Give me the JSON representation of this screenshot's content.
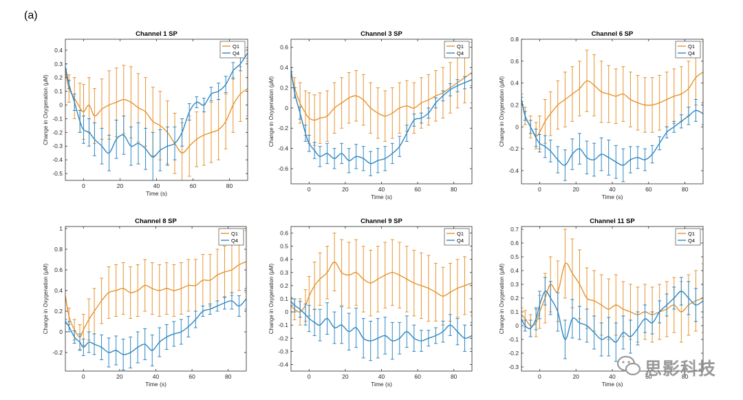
{
  "figure": {
    "panel_label": "(a)",
    "watermark_text": "思影科技"
  },
  "colors": {
    "q1": "#EDB120",
    "q1_line": "#E6922C",
    "q4": "#2E86C1",
    "axis": "#262626",
    "grid": "#ffffff"
  },
  "chart_data": [
    {
      "type": "line",
      "title": "Channel 1 SP",
      "xlabel": "Time (s)",
      "ylabel": "Change in Oxygenation (μM)",
      "xlim": [
        -10,
        90
      ],
      "ylim": [
        -0.55,
        0.48
      ],
      "xticks": [
        0,
        20,
        40,
        60,
        80
      ],
      "yticks": [
        -0.5,
        -0.4,
        -0.3,
        -0.2,
        -0.1,
        0,
        0.1,
        0.2,
        0.3,
        0.4
      ],
      "ytick_labels": [
        "-0.5",
        "-0.4",
        "-0.3",
        "-0.2",
        "-0.1",
        "0",
        "0.1",
        "0.2",
        "0.3",
        "0.4"
      ],
      "legend": "top-right",
      "x": [
        -10,
        -8,
        -5,
        -2,
        0,
        3,
        6,
        10,
        14,
        18,
        22,
        26,
        30,
        34,
        38,
        42,
        46,
        50,
        54,
        58,
        62,
        66,
        70,
        74,
        78,
        82,
        86,
        90
      ],
      "series": [
        {
          "name": "Q1",
          "values": [
            0.25,
            0.12,
            0.05,
            -0.02,
            -0.05,
            0.0,
            -0.08,
            -0.03,
            0.0,
            0.02,
            0.04,
            0.02,
            -0.02,
            -0.05,
            -0.12,
            -0.15,
            -0.2,
            -0.28,
            -0.35,
            -0.3,
            -0.25,
            -0.22,
            -0.2,
            -0.18,
            -0.12,
            0.0,
            0.08,
            0.12
          ],
          "errors": [
            0.05,
            0.1,
            0.15,
            0.18,
            0.2,
            0.2,
            0.2,
            0.22,
            0.25,
            0.25,
            0.25,
            0.26,
            0.25,
            0.25,
            0.25,
            0.25,
            0.23,
            0.22,
            0.22,
            0.22,
            0.2,
            0.22,
            0.22,
            0.22,
            0.2,
            0.2,
            0.2,
            0.2
          ]
        },
        {
          "name": "Q4",
          "values": [
            0.28,
            0.15,
            0.02,
            -0.12,
            -0.18,
            -0.2,
            -0.25,
            -0.3,
            -0.35,
            -0.25,
            -0.22,
            -0.3,
            -0.28,
            -0.32,
            -0.38,
            -0.33,
            -0.3,
            -0.28,
            -0.2,
            -0.05,
            0.02,
            0.0,
            0.08,
            0.1,
            0.15,
            0.25,
            0.3,
            0.38
          ],
          "errors": [
            0.02,
            0.03,
            0.06,
            0.08,
            0.1,
            0.1,
            0.12,
            0.13,
            0.13,
            0.14,
            0.14,
            0.14,
            0.15,
            0.15,
            0.18,
            0.15,
            0.14,
            0.12,
            0.1,
            0.06,
            0.04,
            0.05,
            0.05,
            0.06,
            0.06,
            0.06,
            0.05,
            0.04
          ]
        }
      ]
    },
    {
      "type": "line",
      "title": "Channel 3 SP",
      "xlabel": "Time (s)",
      "ylabel": "Change in Oxygenation (μM)",
      "xlim": [
        -10,
        90
      ],
      "ylim": [
        -0.75,
        0.68
      ],
      "xticks": [
        0,
        20,
        40,
        60,
        80
      ],
      "yticks": [
        -0.6,
        -0.4,
        -0.2,
        0,
        0.2,
        0.4,
        0.6
      ],
      "ytick_labels": [
        "-0.6",
        "-0.4",
        "-0.2",
        "0",
        "0.2",
        "0.4",
        "0.6"
      ],
      "legend": "top-right",
      "x": [
        -10,
        -8,
        -5,
        -2,
        0,
        3,
        6,
        10,
        14,
        18,
        22,
        26,
        30,
        34,
        38,
        42,
        46,
        50,
        54,
        58,
        62,
        66,
        70,
        74,
        78,
        82,
        86,
        90
      ],
      "series": [
        {
          "name": "Q1",
          "values": [
            0.35,
            0.2,
            0.05,
            -0.05,
            -0.1,
            -0.12,
            -0.1,
            -0.08,
            0.0,
            0.05,
            0.1,
            0.12,
            0.08,
            0.0,
            -0.05,
            -0.08,
            -0.05,
            0.0,
            0.02,
            0.0,
            0.05,
            0.08,
            0.12,
            0.15,
            0.2,
            0.25,
            0.3,
            0.35
          ],
          "errors": [
            0.05,
            0.1,
            0.2,
            0.22,
            0.25,
            0.25,
            0.25,
            0.25,
            0.25,
            0.25,
            0.25,
            0.25,
            0.25,
            0.25,
            0.25,
            0.25,
            0.25,
            0.25,
            0.25,
            0.25,
            0.25,
            0.25,
            0.25,
            0.25,
            0.25,
            0.25,
            0.25,
            0.3
          ]
        },
        {
          "name": "Q4",
          "values": [
            0.38,
            0.15,
            -0.05,
            -0.25,
            -0.35,
            -0.42,
            -0.48,
            -0.45,
            -0.5,
            -0.45,
            -0.52,
            -0.48,
            -0.5,
            -0.55,
            -0.52,
            -0.5,
            -0.45,
            -0.38,
            -0.25,
            -0.12,
            -0.1,
            -0.05,
            0.05,
            0.12,
            0.18,
            0.22,
            0.25,
            0.28
          ],
          "errors": [
            0.02,
            0.05,
            0.06,
            0.08,
            0.08,
            0.08,
            0.1,
            0.1,
            0.1,
            0.1,
            0.12,
            0.12,
            0.12,
            0.12,
            0.12,
            0.12,
            0.1,
            0.1,
            0.08,
            0.06,
            0.05,
            0.05,
            0.05,
            0.05,
            0.06,
            0.06,
            0.06,
            0.06
          ]
        }
      ]
    },
    {
      "type": "line",
      "title": "Channel 6 SP",
      "xlabel": "Time (s)",
      "ylabel": "Change in Oxygenation (μM)",
      "xlim": [
        -10,
        90
      ],
      "ylim": [
        -0.52,
        0.8
      ],
      "xticks": [
        0,
        20,
        40,
        60,
        80
      ],
      "yticks": [
        -0.4,
        -0.2,
        0,
        0.2,
        0.4,
        0.6,
        0.8
      ],
      "ytick_labels": [
        "-0.4",
        "-0.2",
        "0",
        "0.2",
        "0.4",
        "0.6",
        "0.8"
      ],
      "legend": "top-right",
      "x": [
        -10,
        -8,
        -5,
        -2,
        0,
        3,
        6,
        10,
        14,
        18,
        22,
        26,
        30,
        34,
        38,
        42,
        46,
        50,
        54,
        58,
        62,
        66,
        70,
        74,
        78,
        82,
        86,
        90
      ],
      "series": [
        {
          "name": "Q1",
          "values": [
            0.25,
            0.1,
            0.0,
            -0.08,
            -0.05,
            0.05,
            0.12,
            0.2,
            0.25,
            0.3,
            0.35,
            0.42,
            0.38,
            0.32,
            0.3,
            0.28,
            0.3,
            0.25,
            0.22,
            0.2,
            0.2,
            0.22,
            0.25,
            0.28,
            0.3,
            0.35,
            0.45,
            0.5
          ],
          "errors": [
            0.05,
            0.08,
            0.1,
            0.12,
            0.15,
            0.2,
            0.2,
            0.22,
            0.25,
            0.25,
            0.25,
            0.28,
            0.28,
            0.28,
            0.26,
            0.25,
            0.25,
            0.25,
            0.25,
            0.25,
            0.25,
            0.25,
            0.25,
            0.25,
            0.25,
            0.25,
            0.25,
            0.28
          ]
        },
        {
          "name": "Q4",
          "values": [
            0.25,
            0.1,
            0.0,
            -0.1,
            -0.15,
            -0.18,
            -0.22,
            -0.3,
            -0.35,
            -0.25,
            -0.2,
            -0.28,
            -0.3,
            -0.25,
            -0.28,
            -0.32,
            -0.35,
            -0.3,
            -0.28,
            -0.3,
            -0.25,
            -0.15,
            -0.05,
            0.0,
            0.05,
            0.1,
            0.15,
            0.12
          ],
          "errors": [
            0.02,
            0.04,
            0.06,
            0.08,
            0.08,
            0.1,
            0.1,
            0.12,
            0.14,
            0.14,
            0.14,
            0.15,
            0.15,
            0.15,
            0.16,
            0.15,
            0.15,
            0.12,
            0.1,
            0.1,
            0.08,
            0.06,
            0.05,
            0.05,
            0.06,
            0.08,
            0.1,
            0.1
          ]
        }
      ]
    },
    {
      "type": "line",
      "title": "Channel 8 SP",
      "xlabel": "Time (s)",
      "ylabel": "Change in Oxygenation (μM)",
      "xlim": [
        -10,
        90
      ],
      "ylim": [
        -0.38,
        1.02
      ],
      "xticks": [
        0,
        20,
        40,
        60,
        80
      ],
      "yticks": [
        -0.2,
        0,
        0.2,
        0.4,
        0.6,
        0.8,
        1
      ],
      "ytick_labels": [
        "-0.2",
        "0",
        "0.2",
        "0.4",
        "0.6",
        "0.8",
        "1"
      ],
      "legend": "top-right",
      "x": [
        -10,
        -8,
        -5,
        -2,
        0,
        3,
        6,
        10,
        14,
        18,
        22,
        26,
        30,
        34,
        38,
        42,
        46,
        50,
        54,
        58,
        62,
        66,
        70,
        74,
        78,
        82,
        86,
        90
      ],
      "series": [
        {
          "name": "Q1",
          "values": [
            0.35,
            0.15,
            0.02,
            -0.05,
            0.02,
            0.12,
            0.2,
            0.3,
            0.38,
            0.4,
            0.42,
            0.38,
            0.4,
            0.45,
            0.42,
            0.4,
            0.42,
            0.4,
            0.42,
            0.45,
            0.45,
            0.5,
            0.5,
            0.55,
            0.58,
            0.6,
            0.65,
            0.68
          ],
          "errors": [
            0.05,
            0.08,
            0.1,
            0.12,
            0.15,
            0.2,
            0.22,
            0.22,
            0.25,
            0.25,
            0.25,
            0.25,
            0.25,
            0.25,
            0.25,
            0.25,
            0.25,
            0.25,
            0.25,
            0.25,
            0.25,
            0.25,
            0.25,
            0.25,
            0.25,
            0.25,
            0.25,
            0.3
          ]
        },
        {
          "name": "Q4",
          "values": [
            0.1,
            0.05,
            -0.05,
            -0.1,
            -0.15,
            -0.1,
            -0.12,
            -0.15,
            -0.2,
            -0.18,
            -0.22,
            -0.2,
            -0.15,
            -0.12,
            -0.18,
            -0.1,
            -0.05,
            -0.02,
            0.0,
            0.05,
            0.12,
            0.2,
            0.22,
            0.25,
            0.28,
            0.3,
            0.25,
            0.32
          ],
          "errors": [
            0.02,
            0.05,
            0.06,
            0.08,
            0.08,
            0.1,
            0.1,
            0.12,
            0.14,
            0.14,
            0.15,
            0.15,
            0.15,
            0.15,
            0.15,
            0.14,
            0.12,
            0.12,
            0.12,
            0.1,
            0.08,
            0.05,
            0.05,
            0.05,
            0.06,
            0.08,
            0.1,
            0.1
          ]
        }
      ]
    },
    {
      "type": "line",
      "title": "Channel 9 SP",
      "xlabel": "Time (s)",
      "ylabel": "Change in Oxygenation (μM)",
      "xlim": [
        -10,
        90
      ],
      "ylim": [
        -0.45,
        0.65
      ],
      "xticks": [
        0,
        20,
        40,
        60,
        80
      ],
      "yticks": [
        -0.4,
        -0.3,
        -0.2,
        -0.1,
        0,
        0.1,
        0.2,
        0.3,
        0.4,
        0.5,
        0.6
      ],
      "ytick_labels": [
        "-0.4",
        "-0.3",
        "-0.2",
        "-0.1",
        "0",
        "0.1",
        "0.2",
        "0.3",
        "0.4",
        "0.5",
        "0.6"
      ],
      "legend": "top-right",
      "x": [
        -10,
        -8,
        -5,
        -2,
        0,
        3,
        6,
        10,
        14,
        18,
        22,
        26,
        30,
        34,
        38,
        42,
        46,
        50,
        54,
        58,
        62,
        66,
        70,
        74,
        78,
        82,
        86,
        90
      ],
      "series": [
        {
          "name": "Q1",
          "values": [
            0.05,
            0.02,
            0.0,
            0.05,
            0.12,
            0.2,
            0.25,
            0.3,
            0.38,
            0.3,
            0.28,
            0.3,
            0.25,
            0.22,
            0.25,
            0.28,
            0.3,
            0.28,
            0.25,
            0.22,
            0.2,
            0.18,
            0.15,
            0.12,
            0.15,
            0.18,
            0.2,
            0.22
          ],
          "errors": [
            0.05,
            0.08,
            0.1,
            0.12,
            0.15,
            0.18,
            0.2,
            0.2,
            0.22,
            0.25,
            0.25,
            0.25,
            0.25,
            0.25,
            0.25,
            0.25,
            0.25,
            0.25,
            0.25,
            0.25,
            0.25,
            0.25,
            0.22,
            0.22,
            0.22,
            0.22,
            0.22,
            0.25
          ]
        },
        {
          "name": "Q4",
          "values": [
            0.08,
            0.05,
            0.02,
            -0.02,
            -0.05,
            -0.08,
            -0.1,
            -0.05,
            -0.12,
            -0.1,
            -0.15,
            -0.12,
            -0.2,
            -0.22,
            -0.2,
            -0.18,
            -0.22,
            -0.2,
            -0.15,
            -0.2,
            -0.22,
            -0.2,
            -0.18,
            -0.15,
            -0.1,
            -0.15,
            -0.2,
            -0.18
          ],
          "errors": [
            0.03,
            0.05,
            0.06,
            0.08,
            0.1,
            0.1,
            0.12,
            0.12,
            0.12,
            0.14,
            0.14,
            0.15,
            0.15,
            0.15,
            0.15,
            0.14,
            0.14,
            0.12,
            0.12,
            0.1,
            0.08,
            0.06,
            0.06,
            0.08,
            0.08,
            0.1,
            0.1,
            0.1
          ]
        }
      ]
    },
    {
      "type": "line",
      "title": "Channel 11 SP",
      "xlabel": "Time (s)",
      "ylabel": "Change in Oxygenation (μM)",
      "xlim": [
        -10,
        90
      ],
      "ylim": [
        -0.33,
        0.72
      ],
      "xticks": [
        0,
        20,
        40,
        60,
        80
      ],
      "yticks": [
        -0.3,
        -0.2,
        -0.1,
        0,
        0.1,
        0.2,
        0.3,
        0.4,
        0.5,
        0.6,
        0.7
      ],
      "ytick_labels": [
        "-0.3",
        "-0.2",
        "-0.1",
        "0",
        "0.1",
        "0.2",
        "0.3",
        "0.4",
        "0.5",
        "0.6",
        "0.7"
      ],
      "legend": "top-right",
      "x": [
        -10,
        -8,
        -5,
        -2,
        0,
        3,
        6,
        10,
        14,
        18,
        22,
        26,
        30,
        34,
        38,
        42,
        46,
        50,
        54,
        58,
        62,
        66,
        70,
        74,
        78,
        82,
        86,
        90
      ],
      "series": [
        {
          "name": "Q1",
          "values": [
            0.08,
            0.05,
            0.0,
            0.02,
            0.1,
            0.2,
            0.3,
            0.25,
            0.45,
            0.38,
            0.3,
            0.2,
            0.18,
            0.15,
            0.12,
            0.15,
            0.12,
            0.1,
            0.08,
            0.1,
            0.08,
            0.1,
            0.12,
            0.15,
            0.1,
            0.15,
            0.18,
            0.2
          ],
          "errors": [
            0.05,
            0.06,
            0.08,
            0.1,
            0.12,
            0.18,
            0.2,
            0.22,
            0.25,
            0.25,
            0.25,
            0.22,
            0.22,
            0.22,
            0.22,
            0.22,
            0.2,
            0.2,
            0.2,
            0.2,
            0.2,
            0.2,
            0.2,
            0.2,
            0.22,
            0.22,
            0.22,
            0.25
          ]
        },
        {
          "name": "Q4",
          "values": [
            0.05,
            0.0,
            -0.02,
            0.05,
            0.15,
            0.25,
            0.2,
            0.1,
            -0.1,
            0.05,
            0.02,
            0.0,
            -0.05,
            -0.1,
            -0.08,
            -0.12,
            -0.05,
            -0.08,
            -0.02,
            0.05,
            0.02,
            0.1,
            0.15,
            0.2,
            0.25,
            0.2,
            0.15,
            0.18
          ],
          "errors": [
            0.02,
            0.04,
            0.06,
            0.08,
            0.1,
            0.1,
            0.12,
            0.14,
            0.14,
            0.14,
            0.12,
            0.12,
            0.12,
            0.12,
            0.14,
            0.14,
            0.12,
            0.12,
            0.12,
            0.1,
            0.08,
            0.08,
            0.08,
            0.08,
            0.1,
            0.12,
            0.12,
            0.12
          ]
        }
      ]
    }
  ]
}
